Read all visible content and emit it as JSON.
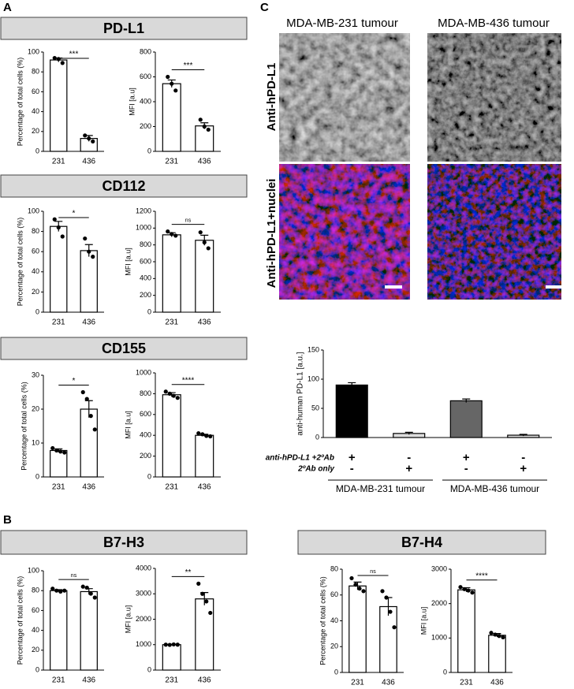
{
  "panel_labels": [
    "A",
    "B",
    "C"
  ],
  "section_titles": [
    "PD-L1",
    "CD112",
    "CD155",
    "B7-H3",
    "B7-H4"
  ],
  "image_columns": [
    "MDA-MB-231 tumour",
    "MDA-MB-436 tumour"
  ],
  "image_rows": [
    "Anti-hPD-L1",
    "Anti-hPD-L1+nuclei"
  ],
  "chart_data": [
    {
      "type": "bar",
      "ylabel": "Percentage of total cells (%)",
      "categories": [
        "231",
        "436"
      ],
      "values": [
        92,
        13
      ],
      "errors": [
        2,
        3
      ],
      "points": [
        [
          94,
          93,
          89
        ],
        [
          16,
          13,
          10
        ]
      ],
      "significance": "***",
      "ylim": [
        0,
        100
      ],
      "yticks": [
        0,
        20,
        40,
        60,
        80,
        100
      ]
    },
    {
      "type": "bar",
      "ylabel": "MFI [a.u]",
      "categories": [
        "231",
        "436"
      ],
      "values": [
        545,
        205
      ],
      "errors": [
        30,
        25
      ],
      "points": [
        [
          600,
          545,
          490
        ],
        [
          255,
          200,
          175
        ]
      ],
      "significance": "***",
      "ylim": [
        0,
        800
      ],
      "yticks": [
        0,
        200,
        400,
        600,
        800
      ]
    },
    {
      "type": "bar",
      "ylabel": "Percentage of total cells (%)",
      "categories": [
        "231",
        "436"
      ],
      "values": [
        85,
        61
      ],
      "errors": [
        5,
        6
      ],
      "points": [
        [
          92,
          84,
          75
        ],
        [
          73,
          60,
          55
        ]
      ],
      "significance": "*",
      "ylim": [
        0,
        100
      ],
      "yticks": [
        0,
        20,
        40,
        60,
        80,
        100
      ]
    },
    {
      "type": "bar",
      "ylabel": "MFI [a.u]",
      "categories": [
        "231",
        "436"
      ],
      "values": [
        920,
        855
      ],
      "errors": [
        25,
        60
      ],
      "points": [
        [
          960,
          930,
          910
        ],
        [
          950,
          830,
          760
        ]
      ],
      "significance": "ns",
      "ylim": [
        0,
        1200
      ],
      "yticks": [
        0,
        200,
        400,
        600,
        800,
        1000,
        1200
      ]
    },
    {
      "type": "bar",
      "ylabel": "Percentage of total cells (%)",
      "categories": [
        "231",
        "436"
      ],
      "values": [
        7.8,
        20
      ],
      "errors": [
        0.5,
        2.5
      ],
      "points": [
        [
          8.5,
          7.8,
          7.5,
          7.2
        ],
        [
          25,
          23,
          18,
          14
        ]
      ],
      "significance": "*",
      "ylim": [
        0,
        30
      ],
      "yticks": [
        0,
        10,
        20,
        30
      ]
    },
    {
      "type": "bar",
      "ylabel": "MFI [a.u]",
      "categories": [
        "231",
        "436"
      ],
      "values": [
        790,
        400
      ],
      "errors": [
        20,
        10
      ],
      "points": [
        [
          820,
          800,
          780,
          760
        ],
        [
          420,
          410,
          395,
          390
        ]
      ],
      "significance": "****",
      "ylim": [
        0,
        1000
      ],
      "yticks": [
        0,
        200,
        400,
        600,
        800,
        1000
      ]
    },
    {
      "type": "bar",
      "ylabel": "Percentage of total cells (%)",
      "categories": [
        "231",
        "436"
      ],
      "values": [
        80,
        79
      ],
      "errors": [
        1,
        3
      ],
      "points": [
        [
          82,
          80,
          79,
          80
        ],
        [
          84,
          83,
          77,
          73
        ]
      ],
      "significance": "ns",
      "ylim": [
        0,
        100
      ],
      "yticks": [
        0,
        20,
        40,
        60,
        80,
        100
      ]
    },
    {
      "type": "bar",
      "ylabel": "MFI [a.u]",
      "categories": [
        "231",
        "436"
      ],
      "values": [
        1000,
        2800
      ],
      "errors": [
        15,
        250
      ],
      "points": [
        [
          1000,
          990,
          1010,
          1000
        ],
        [
          3400,
          3000,
          2700,
          2250
        ]
      ],
      "significance": "**",
      "ylim": [
        0,
        4000
      ],
      "yticks": [
        0,
        1000,
        2000,
        3000,
        4000
      ]
    },
    {
      "type": "bar",
      "ylabel": "Percentage of total cells (%)",
      "categories": [
        "231",
        "436"
      ],
      "values": [
        67,
        51
      ],
      "errors": [
        3,
        7
      ],
      "points": [
        [
          73,
          68,
          65,
          63
        ],
        [
          63,
          58,
          47,
          35
        ]
      ],
      "significance": "ns",
      "ylim": [
        0,
        80
      ],
      "yticks": [
        0,
        20,
        40,
        60,
        80
      ]
    },
    {
      "type": "bar",
      "ylabel": "MFI [a.u]",
      "categories": [
        "231",
        "436"
      ],
      "values": [
        2400,
        1080
      ],
      "errors": [
        60,
        50
      ],
      "points": [
        [
          2480,
          2420,
          2380,
          2320
        ],
        [
          1150,
          1100,
          1060,
          1020
        ]
      ],
      "significance": "****",
      "ylim": [
        0,
        3000
      ],
      "yticks": [
        0,
        1000,
        2000,
        3000
      ]
    },
    {
      "type": "bar",
      "ylabel": "anti-human PD-L1 [a.u.]",
      "values": [
        90,
        7,
        63,
        4
      ],
      "errors": [
        4,
        2,
        3,
        1.5
      ],
      "colors": [
        "#000000",
        "#dddddd",
        "#666666",
        "#dddddd"
      ],
      "ylim": [
        0,
        150
      ],
      "yticks": [
        0,
        50,
        100,
        150
      ],
      "rows": [
        {
          "label": "anti-hPD-L1 +2ºAb",
          "marks": [
            "+",
            "-",
            "+",
            "-"
          ]
        },
        {
          "label": "2ºAb only",
          "marks": [
            "-",
            "+",
            "-",
            "+"
          ]
        }
      ],
      "groups": [
        "MDA-MB-231 tumour",
        "MDA-MB-436 tumour"
      ]
    }
  ]
}
